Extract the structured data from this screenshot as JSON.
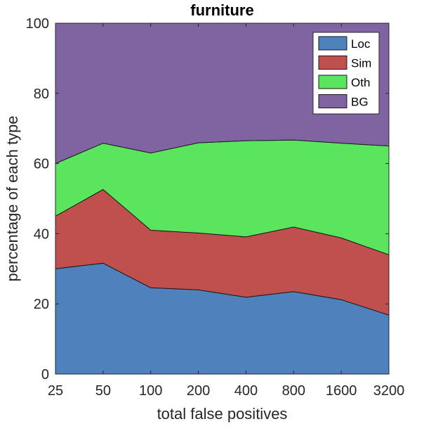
{
  "chart_data": {
    "type": "area",
    "stacked": true,
    "title": "furniture",
    "xlabel": "total false positives",
    "ylabel": "percentage of each type",
    "categories": [
      "25",
      "50",
      "100",
      "200",
      "400",
      "800",
      "1600",
      "3200"
    ],
    "ylim": [
      0,
      100
    ],
    "yticks": [
      0,
      20,
      40,
      60,
      80,
      100
    ],
    "grid": false,
    "legend_position": "top-right",
    "series": [
      {
        "name": "Loc",
        "color": "#4f81bd",
        "values": [
          30,
          31.6,
          24.6,
          24,
          21.9,
          23.5,
          21.2,
          16.8
        ]
      },
      {
        "name": "Sim",
        "color": "#c0504d",
        "values": [
          15,
          21,
          16.4,
          16.2,
          17.2,
          18.4,
          17.6,
          17.2
        ]
      },
      {
        "name": "Oth",
        "color": "#5be55f",
        "values": [
          15,
          13.2,
          22,
          25.7,
          27.4,
          24.8,
          27,
          31
        ]
      },
      {
        "name": "BG",
        "color": "#8064a2",
        "values": [
          40,
          34.2,
          37,
          34.1,
          33.5,
          33.3,
          34.2,
          35
        ]
      }
    ]
  }
}
